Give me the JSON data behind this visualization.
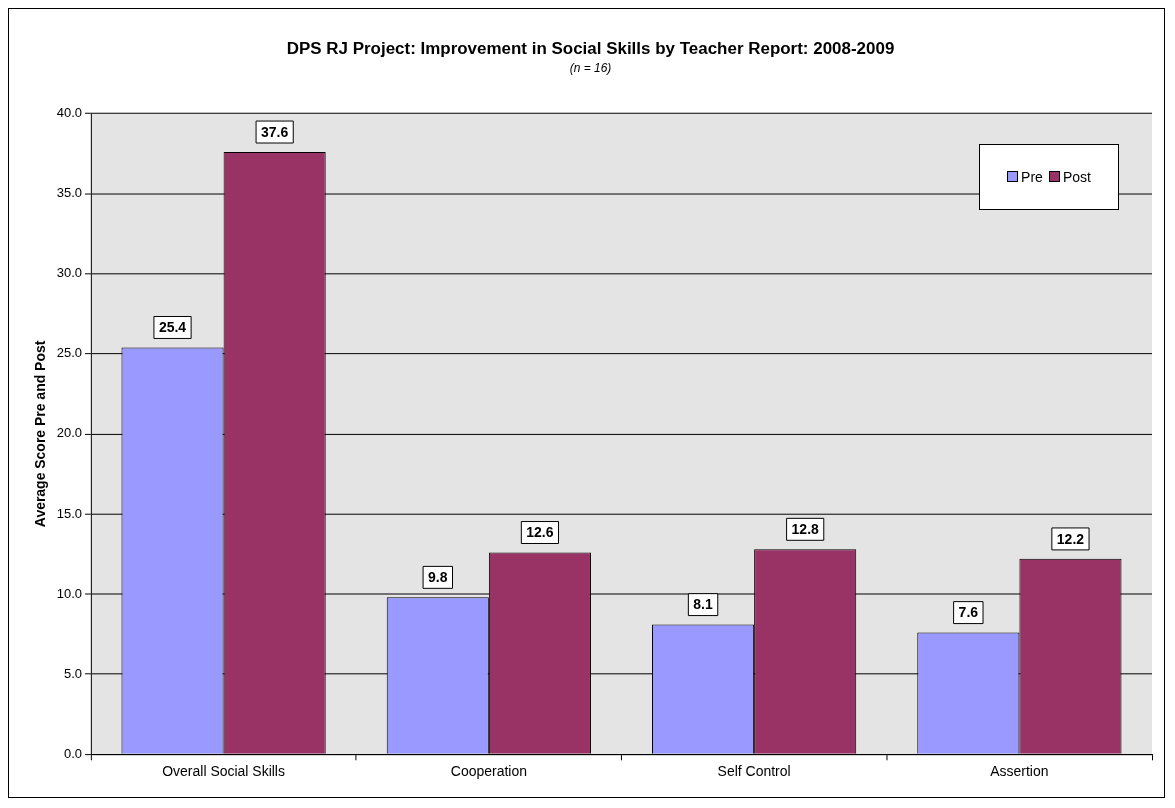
{
  "chart_data": {
    "type": "bar",
    "title": "DPS RJ Project: Improvement in Social Skills by Teacher Report: 2008-2009",
    "subtitle": "(n = 16)",
    "ylabel": "Average Score Pre and Post",
    "categories": [
      "Overall Social Skills",
      "Cooperation",
      "Self Control",
      "Assertion"
    ],
    "series": [
      {
        "name": "Pre",
        "color": "#9999ff",
        "values": [
          25.4,
          9.8,
          8.1,
          7.6
        ]
      },
      {
        "name": "Post",
        "color": "#993366",
        "values": [
          37.6,
          12.6,
          12.8,
          12.2
        ]
      }
    ],
    "ylim": [
      0,
      40
    ],
    "yticks": [
      {
        "value": 0,
        "label": "0.0"
      },
      {
        "value": 5,
        "label": "5.0"
      },
      {
        "value": 10,
        "label": "10.0"
      },
      {
        "value": 15,
        "label": "15.0"
      },
      {
        "value": 20,
        "label": "20.0"
      },
      {
        "value": 25,
        "label": "25.0"
      },
      {
        "value": 30,
        "label": "30.0"
      },
      {
        "value": 35,
        "label": "35.0"
      },
      {
        "value": 40,
        "label": "40.0"
      }
    ],
    "grid": "y",
    "legend": "top right",
    "data_labels": true
  }
}
